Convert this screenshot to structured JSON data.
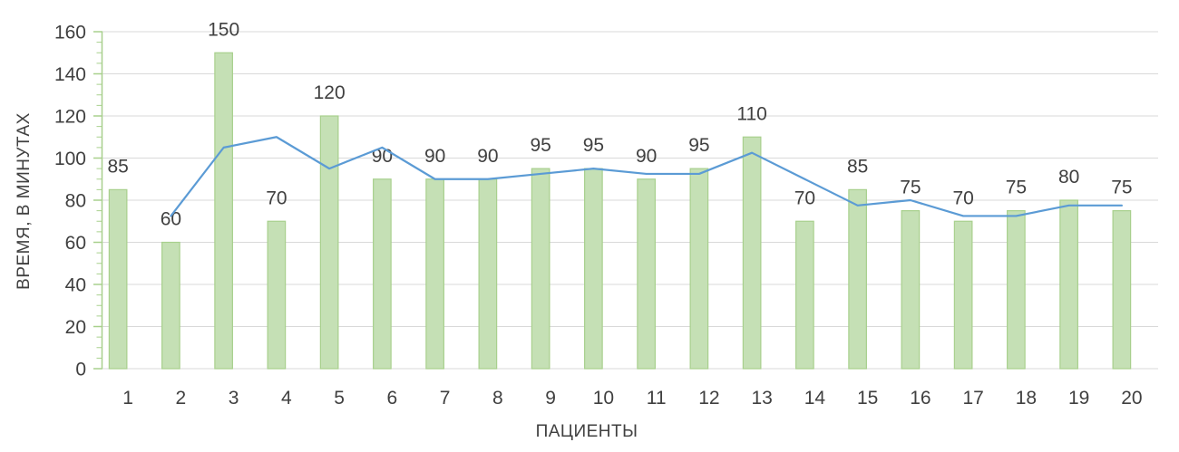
{
  "axes": {
    "y_title": "ВРЕМЯ, В МИНУТАХ",
    "x_title": "ПАЦИЕНТЫ"
  },
  "chart_data": {
    "type": "bar",
    "title": "",
    "xlabel": "ПАЦИЕНТЫ",
    "ylabel": "ВРЕМЯ, В МИНУТАХ",
    "categories": [
      "1",
      "2",
      "3",
      "4",
      "5",
      "6",
      "7",
      "8",
      "9",
      "10",
      "11",
      "12",
      "13",
      "14",
      "15",
      "16",
      "17",
      "18",
      "19",
      "20"
    ],
    "series": [
      {
        "name": "patient-time-bars",
        "type": "column",
        "values": [
          85,
          60,
          150,
          70,
          120,
          90,
          90,
          90,
          95,
          95,
          90,
          95,
          110,
          70,
          85,
          75,
          70,
          75,
          80,
          75
        ],
        "data_labels": true,
        "fill_color": "#c5e0b5",
        "border_color": "#a8d08d"
      },
      {
        "name": "moving-average-line",
        "type": "line",
        "values": [
          null,
          72.5,
          105,
          110,
          95,
          105,
          90,
          90,
          92.5,
          95,
          92.5,
          92.5,
          102.5,
          90,
          77.5,
          80,
          72.5,
          72.5,
          77.5,
          77.5
        ],
        "color": "#5b9bd5"
      }
    ],
    "ylim": [
      0,
      160
    ],
    "y_major_step": 20,
    "y_minor_step": 5,
    "grid": "horizontal",
    "legend": "none",
    "gridline_color": "#d9d9d9",
    "axis_color": "#a8d08d",
    "text_color": "#404040"
  }
}
